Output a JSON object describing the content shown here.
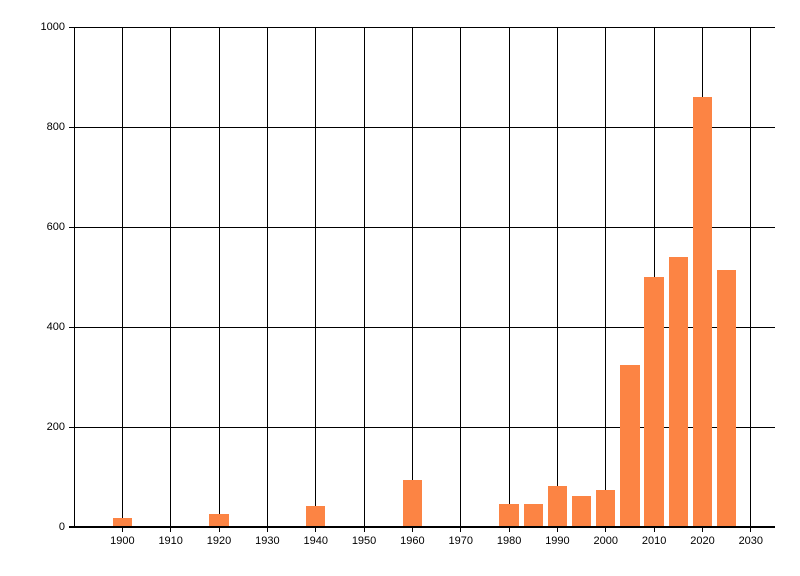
{
  "chart_data": {
    "type": "bar",
    "title": "",
    "xlabel": "",
    "ylabel": "",
    "x": [
      1900,
      1920,
      1940,
      1960,
      1980,
      1985,
      1990,
      1995,
      2000,
      2005,
      2010,
      2015,
      2020,
      2025
    ],
    "values": [
      18,
      27,
      43,
      95,
      46,
      47,
      83,
      62,
      75,
      325,
      500,
      540,
      860,
      515
    ],
    "bar_width_years": 4,
    "x_ticks": [
      1900,
      1910,
      1920,
      1930,
      1940,
      1950,
      1960,
      1970,
      1980,
      1990,
      2000,
      2010,
      2020,
      2030
    ],
    "y_ticks": [
      0,
      200,
      400,
      600,
      800,
      1000
    ],
    "xlim": [
      1890,
      2035
    ],
    "ylim": [
      0,
      1000
    ],
    "grid": true,
    "legend": "none",
    "bar_color": "#FC8444",
    "grid_color": "#000000",
    "text_color": "#000000",
    "background": "#FFFFFF"
  }
}
